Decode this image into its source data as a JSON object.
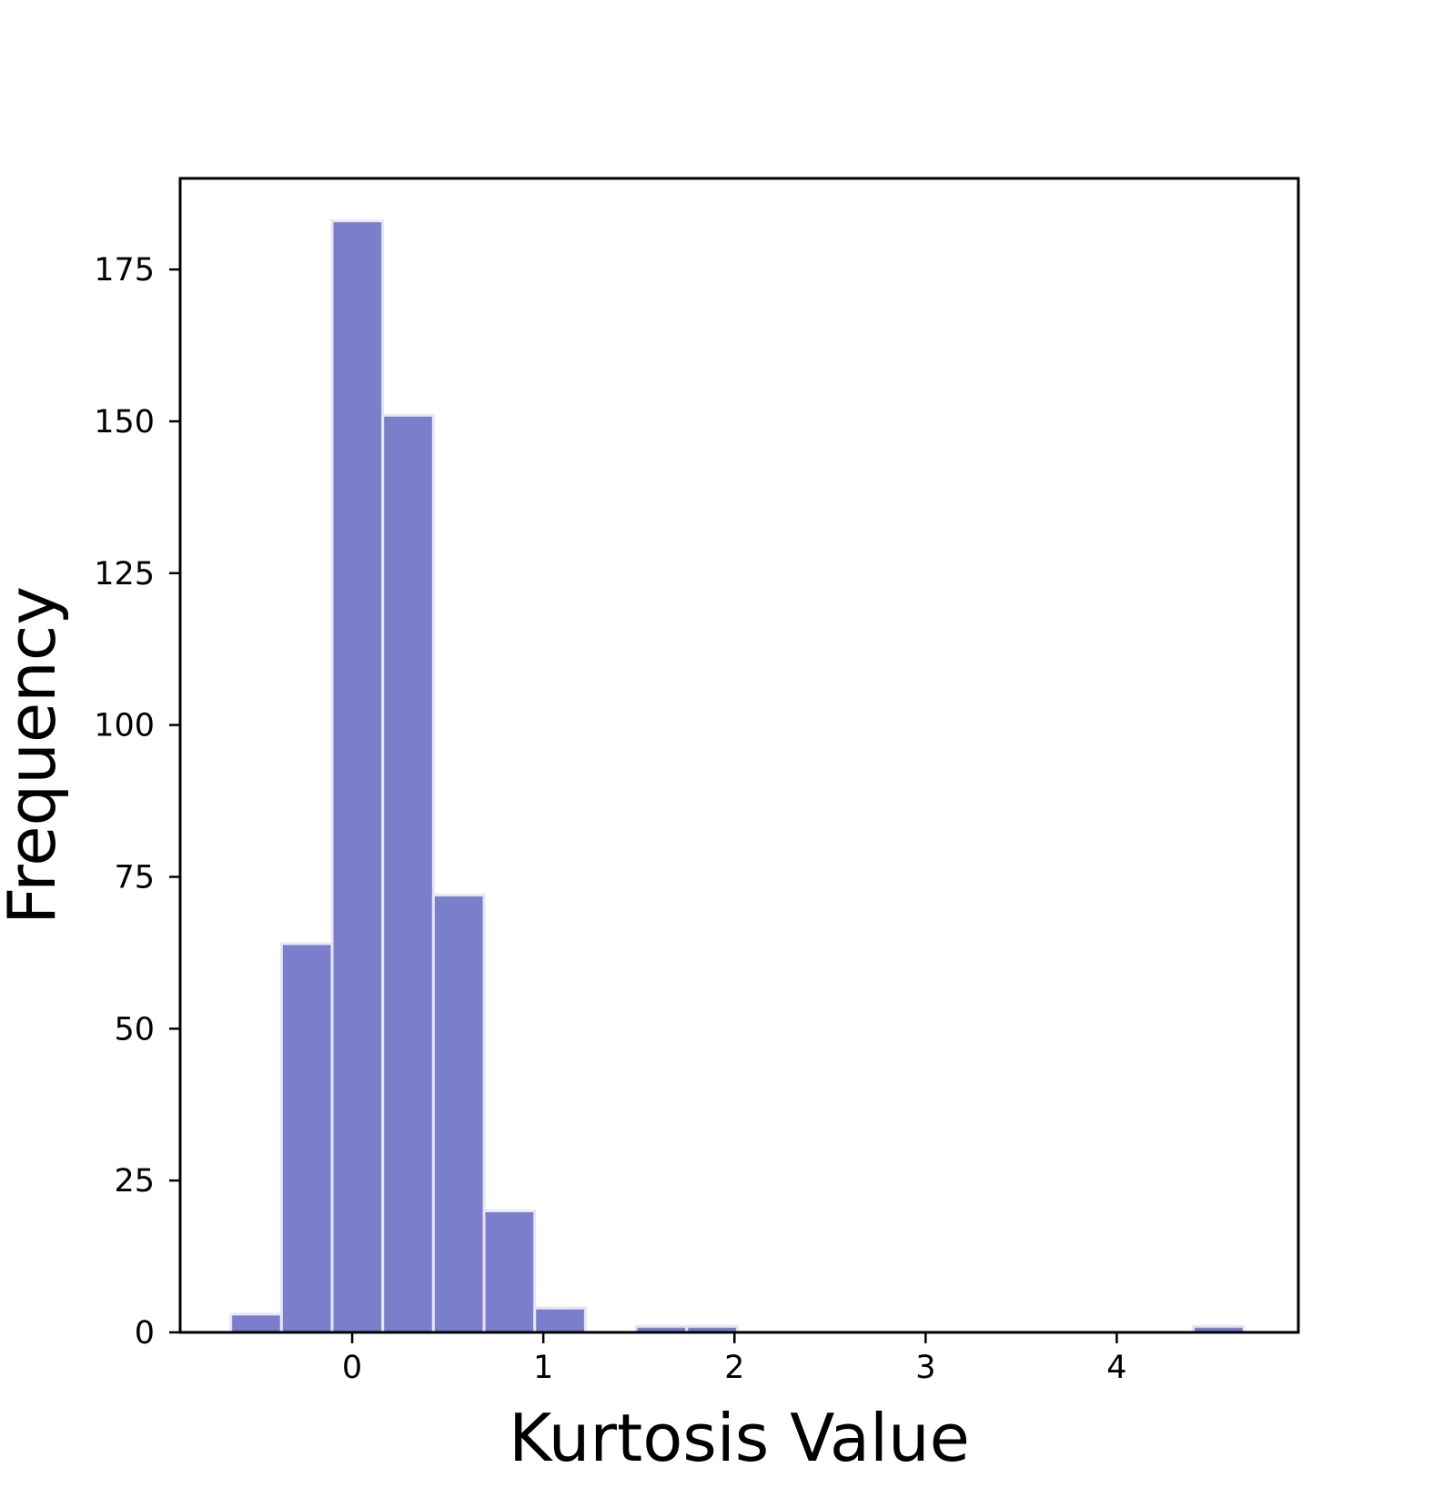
{
  "chart_data": {
    "type": "bar",
    "title": "",
    "xlabel": "Kurtosis Value",
    "ylabel": "Frequency",
    "xlim": [
      -0.9,
      4.95
    ],
    "ylim": [
      0,
      190
    ],
    "x_ticks": [
      0,
      1,
      2,
      3,
      4
    ],
    "y_ticks": [
      0,
      25,
      50,
      75,
      100,
      125,
      150,
      175
    ],
    "bin_width": 0.265,
    "bins": [
      {
        "x_start": -0.635,
        "x_end": -0.37,
        "count": 3
      },
      {
        "x_start": -0.37,
        "x_end": -0.105,
        "count": 64
      },
      {
        "x_start": -0.105,
        "x_end": 0.16,
        "count": 183
      },
      {
        "x_start": 0.16,
        "x_end": 0.425,
        "count": 151
      },
      {
        "x_start": 0.425,
        "x_end": 0.69,
        "count": 72
      },
      {
        "x_start": 0.69,
        "x_end": 0.955,
        "count": 20
      },
      {
        "x_start": 0.955,
        "x_end": 1.22,
        "count": 4
      },
      {
        "x_start": 1.22,
        "x_end": 1.485,
        "count": 0
      },
      {
        "x_start": 1.485,
        "x_end": 1.75,
        "count": 1
      },
      {
        "x_start": 1.75,
        "x_end": 2.015,
        "count": 1
      },
      {
        "x_start": 4.4,
        "x_end": 4.665,
        "count": 1
      }
    ],
    "grid": false,
    "legend": "none"
  },
  "colors": {
    "bar_fill": "#7b7ecb",
    "bar_edge": "#e6e6f5",
    "axis": "#000000",
    "background": "#ffffff"
  }
}
